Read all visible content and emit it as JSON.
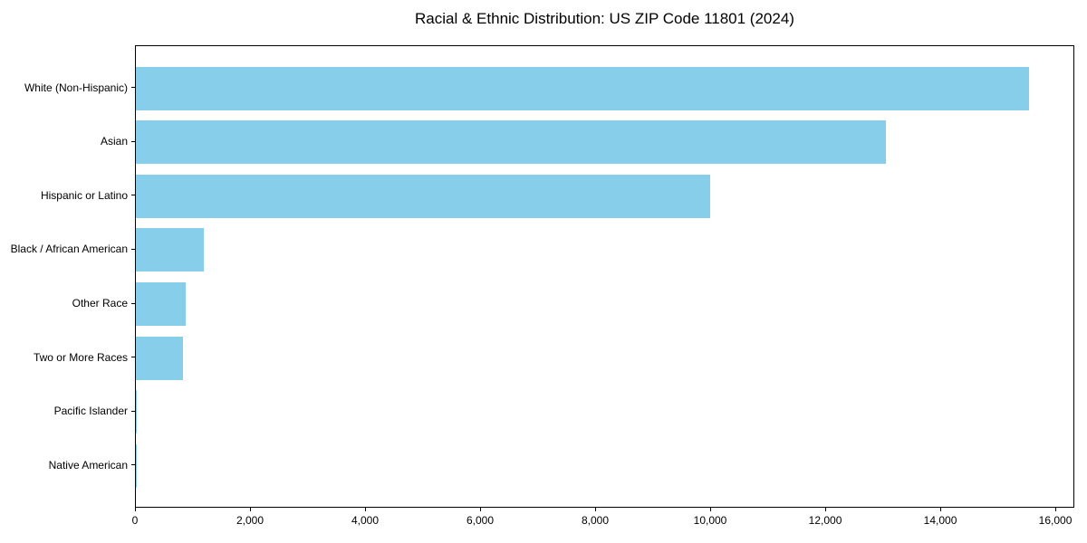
{
  "chart_data": {
    "type": "bar",
    "orientation": "horizontal",
    "title": "Racial & Ethnic Distribution: US ZIP Code 11801 (2024)",
    "categories": [
      "White (Non-Hispanic)",
      "Asian",
      "Hispanic or Latino",
      "Black / African American",
      "Other Race",
      "Two or More Races",
      "Pacific Islander",
      "Native American"
    ],
    "values": [
      15550,
      13070,
      10000,
      1180,
      870,
      820,
      20,
      10
    ],
    "xlabel": "",
    "ylabel": "",
    "xlim": [
      0,
      16330
    ],
    "xticks": [
      0,
      2000,
      4000,
      6000,
      8000,
      10000,
      12000,
      14000,
      16000
    ],
    "xtick_labels": [
      "0",
      "2,000",
      "4,000",
      "6,000",
      "8,000",
      "10,000",
      "12,000",
      "14,000",
      "16,000"
    ],
    "bar_color": "#87CEEB",
    "background": "#FFFFFF",
    "text_color": "#000000",
    "grid": false,
    "legend": null
  }
}
